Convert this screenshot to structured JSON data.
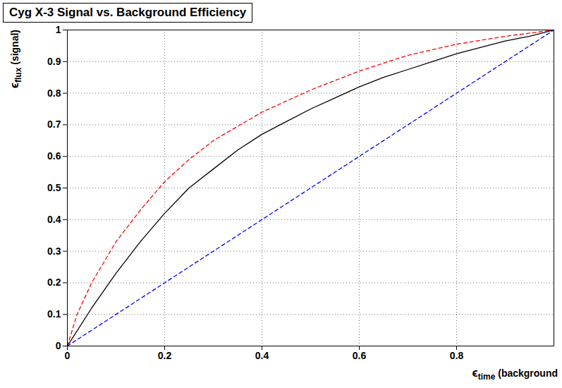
{
  "chart_data": {
    "type": "line",
    "title": "Cyg X-3 Signal vs. Background Efficiency",
    "x_label": "ϵtime (background",
    "y_label": "ϵflux (signal)",
    "xlim": [
      0,
      1
    ],
    "ylim": [
      0,
      1
    ],
    "xticks": [
      0,
      0.2,
      0.4,
      0.6,
      0.8
    ],
    "yticks": [
      0,
      0.1,
      0.2,
      0.3,
      0.4,
      0.5,
      0.6,
      0.7,
      0.8,
      0.9,
      1
    ],
    "grid": true,
    "series": [
      {
        "color": "#000000",
        "line_style": "solid",
        "x": [
          0,
          0.05,
          0.1,
          0.15,
          0.2,
          0.25,
          0.3,
          0.35,
          0.4,
          0.45,
          0.5,
          0.55,
          0.6,
          0.65,
          0.7,
          0.75,
          0.8,
          0.85,
          0.9,
          0.95,
          1
        ],
        "values": [
          0,
          0.12,
          0.23,
          0.33,
          0.42,
          0.5,
          0.56,
          0.62,
          0.67,
          0.71,
          0.75,
          0.785,
          0.82,
          0.85,
          0.875,
          0.9,
          0.925,
          0.945,
          0.965,
          0.98,
          1
        ]
      },
      {
        "color": "#ff0000",
        "line_style": "dashed",
        "x": [
          0,
          0.02,
          0.05,
          0.1,
          0.15,
          0.2,
          0.25,
          0.3,
          0.4,
          0.5,
          0.6,
          0.7,
          0.8,
          0.9,
          1
        ],
        "values": [
          0,
          0.1,
          0.2,
          0.33,
          0.43,
          0.52,
          0.59,
          0.65,
          0.74,
          0.81,
          0.87,
          0.92,
          0.955,
          0.98,
          1
        ]
      },
      {
        "color": "#0000ff",
        "line_style": "dashed",
        "x": [
          0,
          1
        ],
        "values": [
          0,
          1
        ]
      }
    ]
  }
}
